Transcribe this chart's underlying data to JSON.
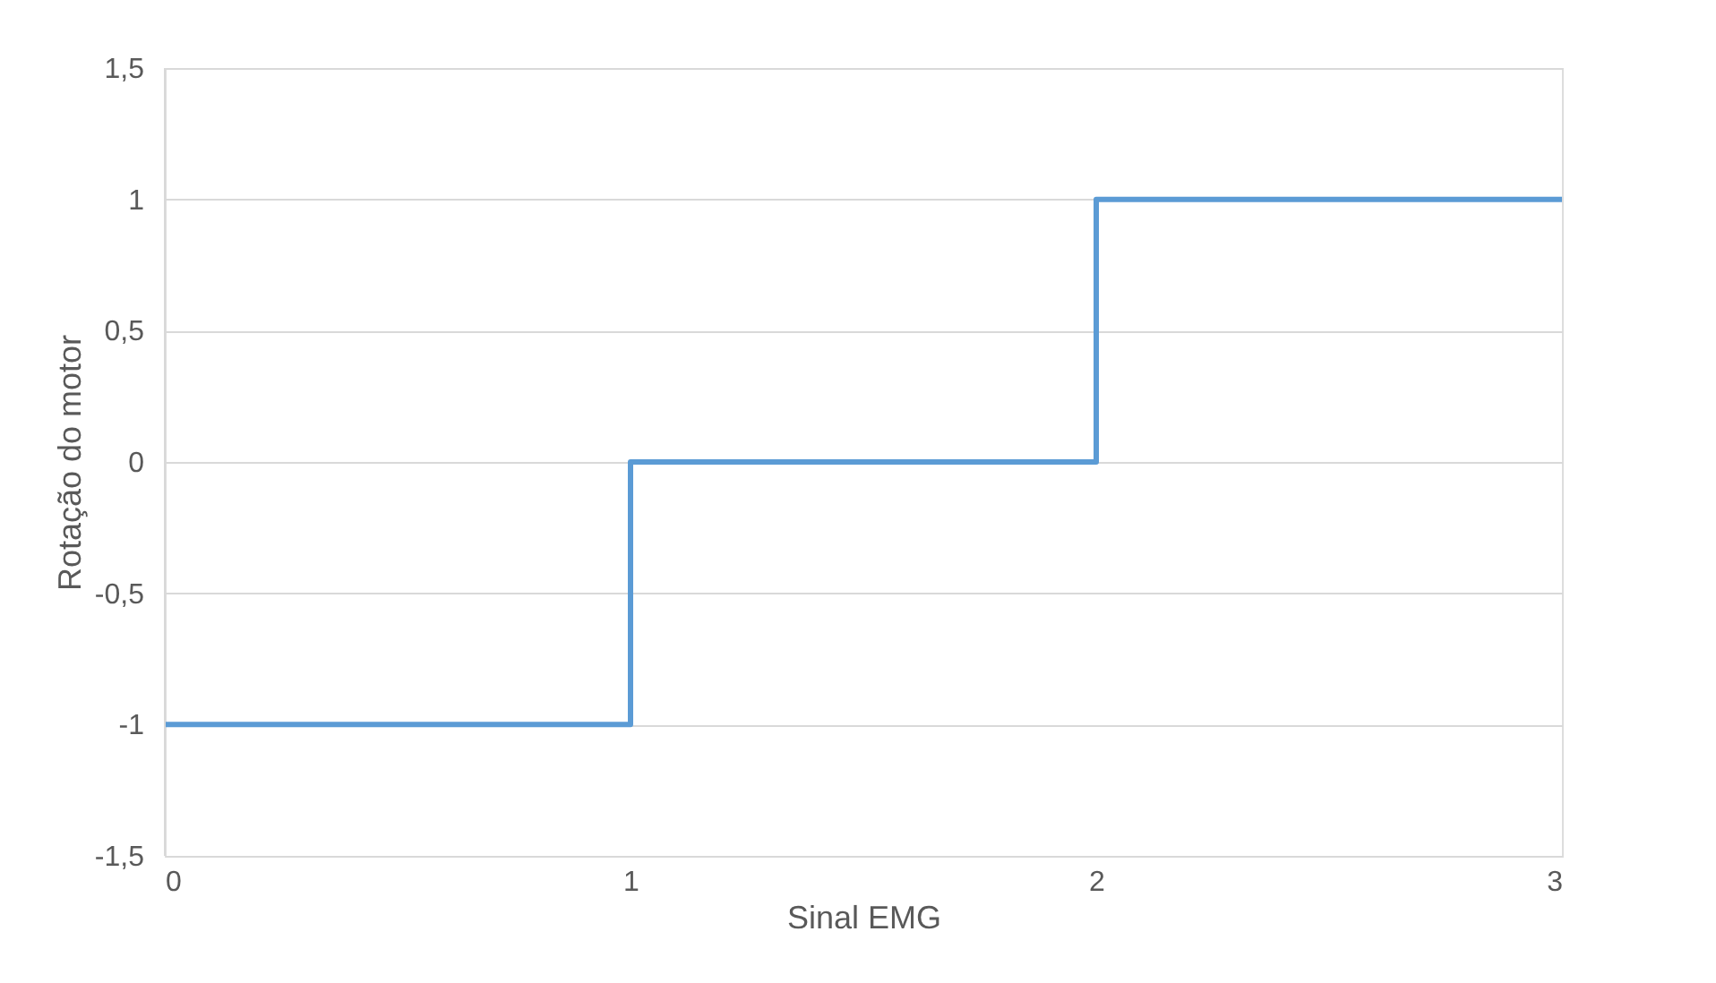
{
  "chart_data": {
    "type": "step",
    "xlabel": "Sinal EMG",
    "ylabel": "Rotação do motor",
    "x": [
      0,
      1,
      2,
      3
    ],
    "series": [
      {
        "color": "#5b9bd5",
        "values": [
          -1,
          0,
          1,
          1
        ]
      }
    ],
    "xlim": [
      0,
      3
    ],
    "xticks": [
      0,
      1,
      2,
      3
    ],
    "ylim": [
      -1.5,
      1.5
    ],
    "yticks": [
      {
        "value": -1.5,
        "label": "-1,5"
      },
      -1,
      {
        "value": -0.5,
        "label": "-0,5"
      },
      0,
      {
        "value": 0.5,
        "label": "0,5"
      },
      1,
      {
        "value": 1.5,
        "label": "1,5"
      }
    ],
    "grid": "y"
  }
}
